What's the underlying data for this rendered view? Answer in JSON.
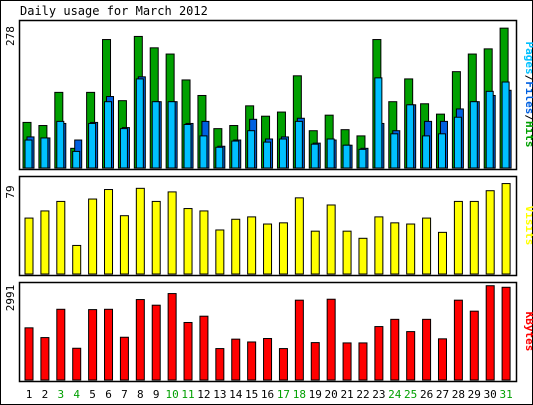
{
  "title": "Daily usage for March 2012",
  "colors": {
    "hits": "#00a000",
    "files": "#0060e0",
    "pages": "#00c0ff",
    "visits": "#ffff00",
    "kbytes": "#ff0000",
    "weekend_label": "#00a000",
    "weekday_label": "#000000",
    "border": "#000000",
    "background": "#ffffff"
  },
  "chart_data": [
    {
      "type": "bar",
      "panel": "hits-files-pages",
      "ylabel": "Pages/Files/Hits",
      "ylabel_parts": [
        "Pages",
        "/",
        "Files",
        "/",
        "Hits"
      ],
      "ymax_label": "278",
      "ylim": [
        0,
        278
      ],
      "categories": [
        "1",
        "2",
        "3",
        "4",
        "5",
        "6",
        "7",
        "8",
        "9",
        "10",
        "11",
        "12",
        "13",
        "14",
        "15",
        "16",
        "17",
        "18",
        "19",
        "20",
        "21",
        "22",
        "23",
        "24",
        "25",
        "26",
        "27",
        "28",
        "29",
        "30",
        "31"
      ],
      "weekend": [
        "3",
        "4",
        "10",
        "11",
        "17",
        "18",
        "24",
        "25",
        "31"
      ],
      "series": [
        {
          "name": "Hits",
          "color": "hits",
          "values": [
            88,
            82,
            146,
            38,
            146,
            248,
            130,
            254,
            232,
            220,
            170,
            140,
            76,
            82,
            120,
            100,
            108,
            178,
            72,
            102,
            74,
            62,
            248,
            128,
            172,
            124,
            104,
            186,
            220,
            230,
            270
          ]
        },
        {
          "name": "Files",
          "color": "files",
          "values": [
            60,
            58,
            86,
            54,
            88,
            138,
            78,
            176,
            128,
            128,
            86,
            90,
            42,
            54,
            94,
            56,
            60,
            96,
            48,
            54,
            44,
            38,
            86,
            72,
            122,
            90,
            90,
            114,
            128,
            140,
            150
          ]
        },
        {
          "name": "Pages",
          "color": "pages",
          "values": [
            54,
            58,
            90,
            32,
            86,
            128,
            76,
            172,
            128,
            128,
            84,
            62,
            40,
            52,
            72,
            50,
            56,
            90,
            46,
            56,
            44,
            36,
            174,
            66,
            122,
            62,
            66,
            98,
            128,
            148,
            166
          ]
        }
      ]
    },
    {
      "type": "bar",
      "panel": "visits",
      "ylabel": "Visits",
      "ymax_label": "79",
      "ylim": [
        0,
        79
      ],
      "categories": [
        "1",
        "2",
        "3",
        "4",
        "5",
        "6",
        "7",
        "8",
        "9",
        "10",
        "11",
        "12",
        "13",
        "14",
        "15",
        "16",
        "17",
        "18",
        "19",
        "20",
        "21",
        "22",
        "23",
        "24",
        "25",
        "26",
        "27",
        "28",
        "29",
        "30",
        "31"
      ],
      "series": [
        {
          "name": "Visits",
          "color": "visits",
          "values": [
            47,
            53,
            61,
            24,
            63,
            71,
            49,
            72,
            61,
            69,
            55,
            53,
            37,
            46,
            48,
            42,
            43,
            64,
            36,
            58,
            36,
            30,
            48,
            43,
            42,
            47,
            35,
            61,
            61,
            70,
            76
          ]
        }
      ]
    },
    {
      "type": "bar",
      "panel": "kbytes",
      "ylabel": "KBytes",
      "ymax_label": "2991",
      "ylim": [
        0,
        2991
      ],
      "categories": [
        "1",
        "2",
        "3",
        "4",
        "5",
        "6",
        "7",
        "8",
        "9",
        "10",
        "11",
        "12",
        "13",
        "14",
        "15",
        "16",
        "17",
        "18",
        "19",
        "20",
        "21",
        "22",
        "23",
        "24",
        "25",
        "26",
        "27",
        "28",
        "29",
        "30",
        "31"
      ],
      "series": [
        {
          "name": "KBytes",
          "color": "kbytes",
          "values": [
            1660,
            1350,
            2250,
            1010,
            2240,
            2250,
            1360,
            2560,
            2380,
            2750,
            1830,
            2030,
            1000,
            1300,
            1210,
            1320,
            1000,
            2540,
            1190,
            2570,
            1180,
            1180,
            1700,
            1930,
            1540,
            1930,
            1310,
            2540,
            2190,
            3000,
            2950
          ]
        }
      ]
    }
  ]
}
